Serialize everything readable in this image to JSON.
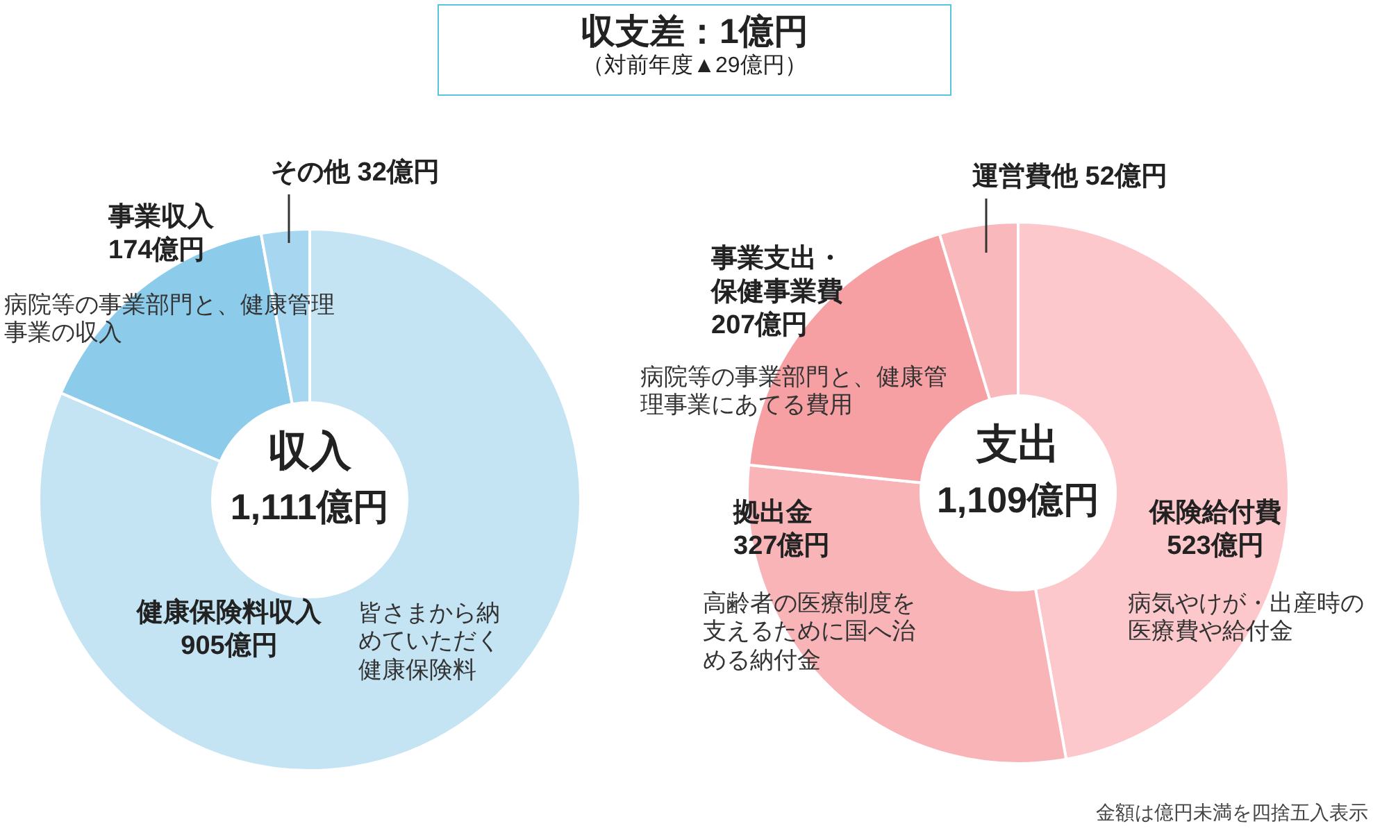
{
  "chart_data": [
    {
      "type": "donut",
      "title": "収支差：1億円",
      "subtitle": "（対前年度▲29億円）",
      "categories": [
        "健康保険料収入",
        "事業収入",
        "その他"
      ],
      "values": [
        905,
        174,
        32
      ],
      "value_labels": [
        "905億円",
        "174億円",
        "32億円"
      ],
      "colors": [
        "#c4e4f4",
        "#8dcbea",
        "#a7d7f0"
      ],
      "annotations": [
        "収入",
        "1,111億円",
        "皆さまから納めていただく健康保険料",
        "病院等の事業部門と、健康管理事業の収入"
      ]
    },
    {
      "type": "donut",
      "categories": [
        "保険給付費",
        "拠出金",
        "事業支出・保健事業費",
        "運営費他"
      ],
      "values": [
        523,
        327,
        207,
        52
      ],
      "value_labels": [
        "523億円",
        "327億円",
        "207億円",
        "52億円"
      ],
      "colors": [
        "#fcc8cb",
        "#f9b4b7",
        "#f7a0a4",
        "#f9b9bc"
      ],
      "annotations": [
        "支出",
        "1,109億円",
        "病気やけが・出産時の医療費や給付金",
        "高齢者の医療制度を支えるために国へ治める納付金",
        "病院等の事業部門と、健康管理事業にあてる費用",
        "金額は億円未満を四捨五入表示"
      ]
    }
  ]
}
